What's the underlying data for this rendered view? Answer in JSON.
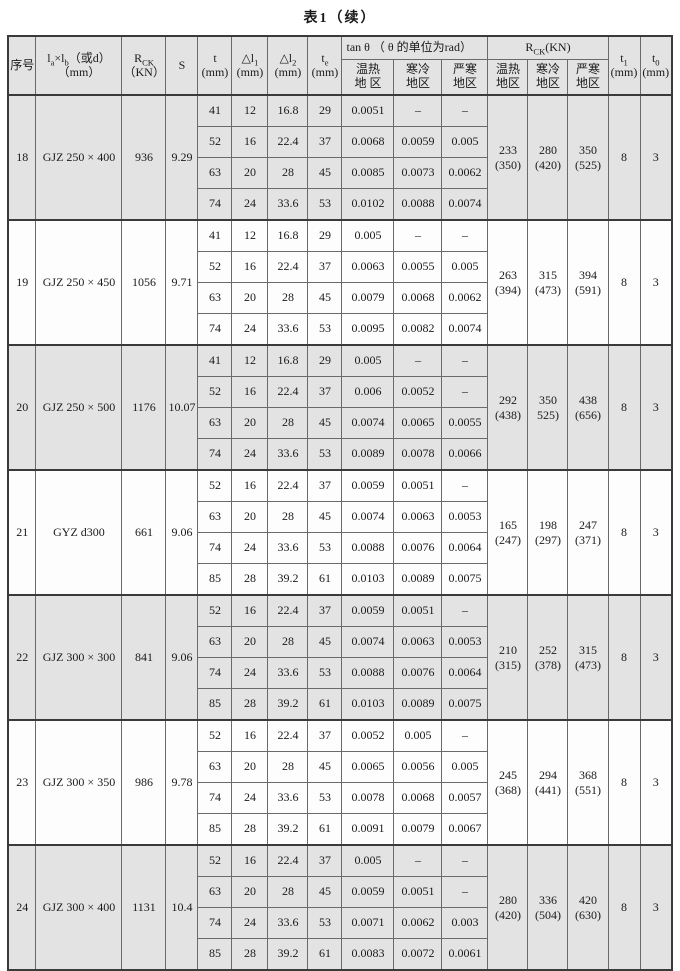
{
  "title": "表1（续）",
  "colors": {
    "row_shade": "#e3e3e3",
    "grid_line": "#6a6a6a",
    "heavy_line": "#3a3a3a"
  },
  "header": {
    "no": "序号",
    "size": {
      "l1": "l",
      "s1": "a",
      "x": "×l",
      "s2": "b",
      "rest": "（或d）",
      "unit": "（mm）"
    },
    "rck": {
      "r": "R",
      "sub": "CK",
      "unit": "（KN）"
    },
    "s": "S",
    "t": {
      "m": "t",
      "unit": "(mm)"
    },
    "dl1": {
      "m": "△l",
      "sub": "1",
      "unit": "(mm)"
    },
    "dl2": {
      "m": "△l",
      "sub": "2",
      "unit": "(mm)"
    },
    "te": {
      "m": "t",
      "sub": "e",
      "unit": "(mm)"
    },
    "tan_group": "tan θ （ θ 的单位为rad）",
    "rck_group": {
      "r": "R",
      "sub": "CK",
      "unit": "(KN)"
    },
    "tan_zones": [
      {
        "l1": "温热",
        "l2": "地 区"
      },
      {
        "l1": "寒冷",
        "l2": "地区"
      },
      {
        "l1": "严寒",
        "l2": "地区"
      }
    ],
    "rck_zones": [
      {
        "l1": "温热",
        "l2": "地区"
      },
      {
        "l1": "寒冷",
        "l2": "地区"
      },
      {
        "l1": "严寒",
        "l2": "地区"
      }
    ],
    "t1": {
      "m": "t",
      "sub": "1",
      "unit": "(mm)"
    },
    "t0": {
      "m": "t",
      "sub": "0",
      "unit": "(mm)"
    }
  },
  "rows": [
    {
      "no": "18",
      "name": "GJZ 250 × 400",
      "rck": "936",
      "s": "9.29",
      "shade": true,
      "sub": [
        {
          "t": "41",
          "dl1": "12",
          "dl2": "16.8",
          "te": "29",
          "tan": [
            "0.0051",
            "–",
            "–"
          ]
        },
        {
          "t": "52",
          "dl1": "16",
          "dl2": "22.4",
          "te": "37",
          "tan": [
            "0.0068",
            "0.0059",
            "0.005"
          ]
        },
        {
          "t": "63",
          "dl1": "20",
          "dl2": "28",
          "te": "45",
          "tan": [
            "0.0085",
            "0.0073",
            "0.0062"
          ]
        },
        {
          "t": "74",
          "dl1": "24",
          "dl2": "33.6",
          "te": "53",
          "tan": [
            "0.0102",
            "0.0088",
            "0.0074"
          ]
        }
      ],
      "rck_cols": [
        {
          "v": "233",
          "p": "(350)"
        },
        {
          "v": "280",
          "p": "(420)"
        },
        {
          "v": "350",
          "p": "(525)"
        }
      ],
      "t1": "8",
      "t0": "3"
    },
    {
      "no": "19",
      "name": "GJZ 250 × 450",
      "rck": "1056",
      "s": "9.71",
      "shade": false,
      "sub": [
        {
          "t": "41",
          "dl1": "12",
          "dl2": "16.8",
          "te": "29",
          "tan": [
            "0.005",
            "–",
            "–"
          ]
        },
        {
          "t": "52",
          "dl1": "16",
          "dl2": "22.4",
          "te": "37",
          "tan": [
            "0.0063",
            "0.0055",
            "0.005"
          ]
        },
        {
          "t": "63",
          "dl1": "20",
          "dl2": "28",
          "te": "45",
          "tan": [
            "0.0079",
            "0.0068",
            "0.0062"
          ]
        },
        {
          "t": "74",
          "dl1": "24",
          "dl2": "33.6",
          "te": "53",
          "tan": [
            "0.0095",
            "0.0082",
            "0.0074"
          ]
        }
      ],
      "rck_cols": [
        {
          "v": "263",
          "p": "(394)"
        },
        {
          "v": "315",
          "p": "(473)"
        },
        {
          "v": "394",
          "p": "(591)"
        }
      ],
      "t1": "8",
      "t0": "3"
    },
    {
      "no": "20",
      "name": "GJZ 250 × 500",
      "rck": "1176",
      "s": "10.07",
      "shade": true,
      "sub": [
        {
          "t": "41",
          "dl1": "12",
          "dl2": "16.8",
          "te": "29",
          "tan": [
            "0.005",
            "–",
            "–"
          ]
        },
        {
          "t": "52",
          "dl1": "16",
          "dl2": "22.4",
          "te": "37",
          "tan": [
            "0.006",
            "0.0052",
            "–"
          ]
        },
        {
          "t": "63",
          "dl1": "20",
          "dl2": "28",
          "te": "45",
          "tan": [
            "0.0074",
            "0.0065",
            "0.0055"
          ]
        },
        {
          "t": "74",
          "dl1": "24",
          "dl2": "33.6",
          "te": "53",
          "tan": [
            "0.0089",
            "0.0078",
            "0.0066"
          ]
        }
      ],
      "rck_cols": [
        {
          "v": "292",
          "p": "(438)"
        },
        {
          "v": "350",
          "p": "525)"
        },
        {
          "v": "438",
          "p": "(656)"
        }
      ],
      "t1": "8",
      "t0": "3"
    },
    {
      "no": "21",
      "name": "GYZ d300",
      "rck": "661",
      "s": "9.06",
      "shade": false,
      "sub": [
        {
          "t": "52",
          "dl1": "16",
          "dl2": "22.4",
          "te": "37",
          "tan": [
            "0.0059",
            "0.0051",
            "–"
          ]
        },
        {
          "t": "63",
          "dl1": "20",
          "dl2": "28",
          "te": "45",
          "tan": [
            "0.0074",
            "0.0063",
            "0.0053"
          ]
        },
        {
          "t": "74",
          "dl1": "24",
          "dl2": "33.6",
          "te": "53",
          "tan": [
            "0.0088",
            "0.0076",
            "0.0064"
          ]
        },
        {
          "t": "85",
          "dl1": "28",
          "dl2": "39.2",
          "te": "61",
          "tan": [
            "0.0103",
            "0.0089",
            "0.0075"
          ]
        }
      ],
      "rck_cols": [
        {
          "v": "165",
          "p": "(247)"
        },
        {
          "v": "198",
          "p": "(297)"
        },
        {
          "v": "247",
          "p": "(371)"
        }
      ],
      "t1": "8",
      "t0": "3"
    },
    {
      "no": "22",
      "name": "GJZ 300 × 300",
      "rck": "841",
      "s": "9.06",
      "shade": true,
      "sub": [
        {
          "t": "52",
          "dl1": "16",
          "dl2": "22.4",
          "te": "37",
          "tan": [
            "0.0059",
            "0.0051",
            "–"
          ]
        },
        {
          "t": "63",
          "dl1": "20",
          "dl2": "28",
          "te": "45",
          "tan": [
            "0.0074",
            "0.0063",
            "0.0053"
          ]
        },
        {
          "t": "74",
          "dl1": "24",
          "dl2": "33.6",
          "te": "53",
          "tan": [
            "0.0088",
            "0.0076",
            "0.0064"
          ]
        },
        {
          "t": "85",
          "dl1": "28",
          "dl2": "39.2",
          "te": "61",
          "tan": [
            "0.0103",
            "0.0089",
            "0.0075"
          ]
        }
      ],
      "rck_cols": [
        {
          "v": "210",
          "p": "(315)"
        },
        {
          "v": "252",
          "p": "(378)"
        },
        {
          "v": "315",
          "p": "(473)"
        }
      ],
      "t1": "8",
      "t0": "3"
    },
    {
      "no": "23",
      "name": "GJZ 300 × 350",
      "rck": "986",
      "s": "9.78",
      "shade": false,
      "sub": [
        {
          "t": "52",
          "dl1": "16",
          "dl2": "22.4",
          "te": "37",
          "tan": [
            "0.0052",
            "0.005",
            "–"
          ]
        },
        {
          "t": "63",
          "dl1": "20",
          "dl2": "28",
          "te": "45",
          "tan": [
            "0.0065",
            "0.0056",
            "0.005"
          ]
        },
        {
          "t": "74",
          "dl1": "24",
          "dl2": "33.6",
          "te": "53",
          "tan": [
            "0.0078",
            "0.0068",
            "0.0057"
          ]
        },
        {
          "t": "85",
          "dl1": "28",
          "dl2": "39.2",
          "te": "61",
          "tan": [
            "0.0091",
            "0.0079",
            "0.0067"
          ]
        }
      ],
      "rck_cols": [
        {
          "v": "245",
          "p": "(368)"
        },
        {
          "v": "294",
          "p": "(441)"
        },
        {
          "v": "368",
          "p": "(551)"
        }
      ],
      "t1": "8",
      "t0": "3"
    },
    {
      "no": "24",
      "name": "GJZ 300 × 400",
      "rck": "1131",
      "s": "10.4",
      "shade": true,
      "sub": [
        {
          "t": "52",
          "dl1": "16",
          "dl2": "22.4",
          "te": "37",
          "tan": [
            "0.005",
            "–",
            "–"
          ]
        },
        {
          "t": "63",
          "dl1": "20",
          "dl2": "28",
          "te": "45",
          "tan": [
            "0.0059",
            "0.0051",
            "–"
          ]
        },
        {
          "t": "74",
          "dl1": "24",
          "dl2": "33.6",
          "te": "53",
          "tan": [
            "0.0071",
            "0.0062",
            "0.003"
          ]
        },
        {
          "t": "85",
          "dl1": "28",
          "dl2": "39.2",
          "te": "61",
          "tan": [
            "0.0083",
            "0.0072",
            "0.0061"
          ]
        }
      ],
      "rck_cols": [
        {
          "v": "280",
          "p": "(420)"
        },
        {
          "v": "336",
          "p": "(504)"
        },
        {
          "v": "420",
          "p": "(630)"
        }
      ],
      "t1": "8",
      "t0": "3"
    }
  ]
}
